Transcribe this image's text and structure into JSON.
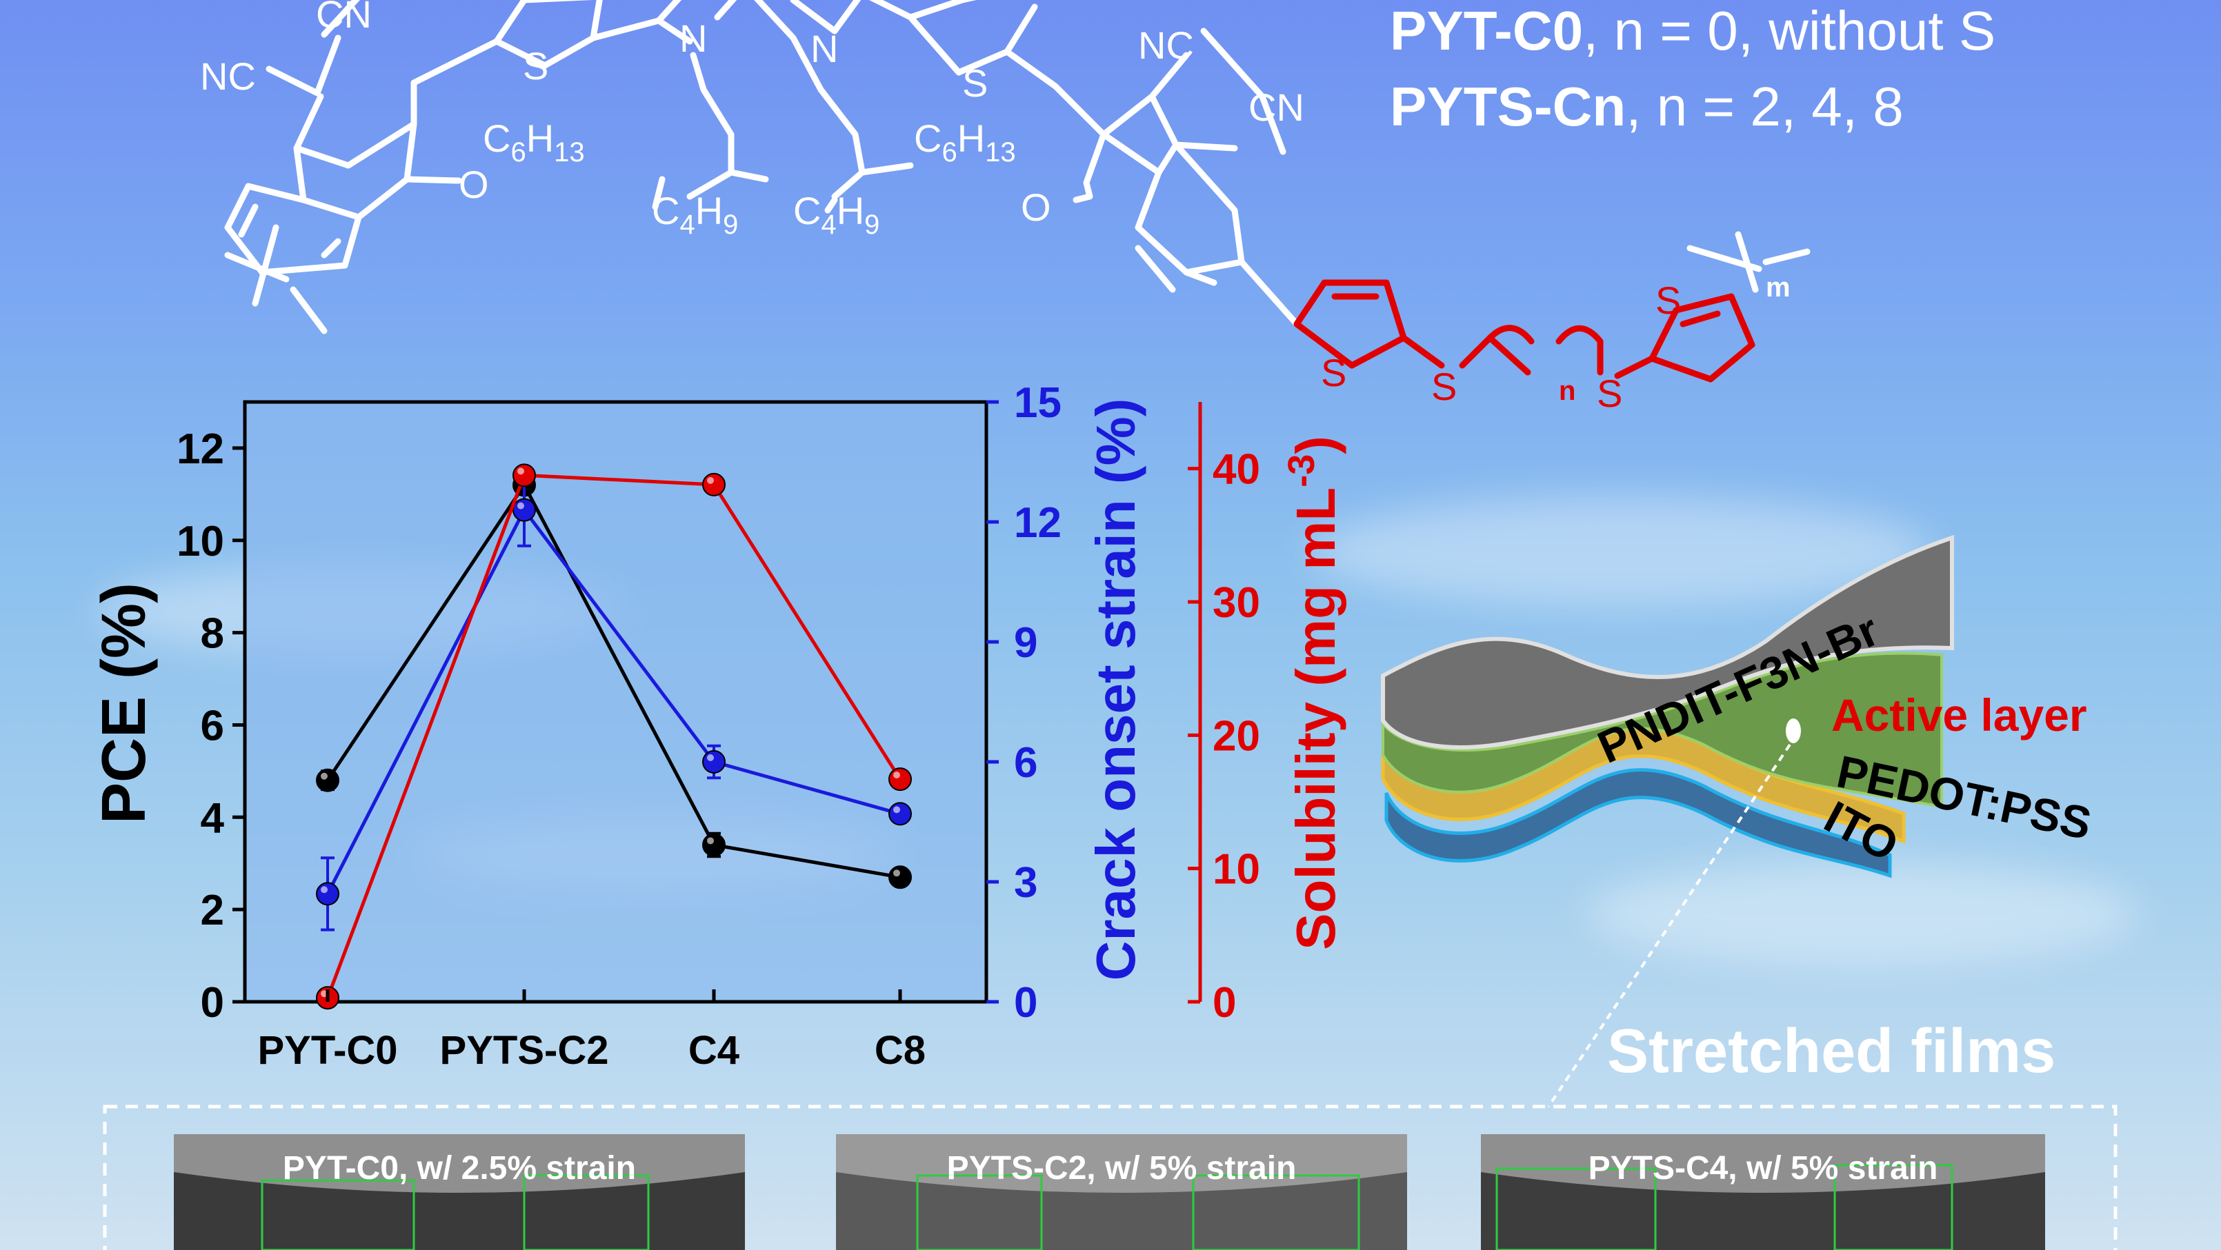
{
  "legend_text": {
    "line1": {
      "bold": "PYT-C0",
      "rest": ", n = 0, without S"
    },
    "line2": {
      "bold": "PYTS-Cn",
      "rest": ", n = 2, 4, 8"
    }
  },
  "molecule": {
    "atoms": {
      "cn": "CN",
      "nc": "NC",
      "s": "S",
      "n": "N",
      "o": "O",
      "c6h13": {
        "c": "C",
        "six": "6",
        "h": "H",
        "thirteen": "13"
      },
      "c4h9": {
        "c": "C",
        "four": "4",
        "h": "H",
        "nine": "9"
      },
      "m": "m",
      "n_sub": "n"
    }
  },
  "chart_data": {
    "type": "scatter",
    "categories": [
      "PYT-C0",
      "PYTS-C2",
      "C4",
      "C8"
    ],
    "axes": {
      "left": {
        "label": "PCE (%)",
        "ylim": [
          0,
          13
        ],
        "ticks": [
          0,
          2,
          4,
          6,
          8,
          10,
          12
        ],
        "color": "#000000"
      },
      "right1": {
        "label": "Crack onset strain (%)",
        "ylim": [
          0,
          15
        ],
        "ticks": [
          0,
          3,
          6,
          9,
          12,
          15
        ],
        "color": "#1a1adb"
      },
      "right2": {
        "label_main": "Solubility  (mg mL",
        "label_sup": "-3",
        "label_close": ")",
        "ylim": [
          0,
          45
        ],
        "ticks": [
          0,
          10,
          20,
          30,
          40
        ],
        "color": "#e00000"
      }
    },
    "series": [
      {
        "axis": "left",
        "color": "#000000",
        "values": [
          4.8,
          11.2,
          3.4,
          2.7
        ],
        "errors": [
          0.2,
          0.2,
          0.25,
          0.1
        ]
      },
      {
        "axis": "right1",
        "color": "#1a1adb",
        "values": [
          2.7,
          12.3,
          6.0,
          4.7
        ],
        "errors": [
          0.9,
          0.9,
          0.4,
          0.15
        ]
      },
      {
        "axis": "right2",
        "color": "#e00000",
        "values": [
          0.3,
          39.5,
          38.8,
          16.7
        ],
        "errors": [
          0,
          0,
          0,
          0
        ]
      }
    ],
    "grid": false
  },
  "device": {
    "layers": [
      "PNDIT-F3N-Br",
      "Active layer",
      "PEDOT:PSS",
      "ITO"
    ]
  },
  "stretched_films": {
    "heading": "Stretched films",
    "photos": [
      {
        "title": "PYT-C0, w/ 2.5% strain"
      },
      {
        "title": "PYTS-C2, w/ 5% strain"
      },
      {
        "title": "PYTS-C4, w/ 5% strain"
      }
    ]
  },
  "colors": {
    "skyTop": "#6f90f2",
    "skyBottom": "#cfe2f1",
    "thiophene": "#e00000",
    "chartPanel": "#8ab8ee"
  }
}
